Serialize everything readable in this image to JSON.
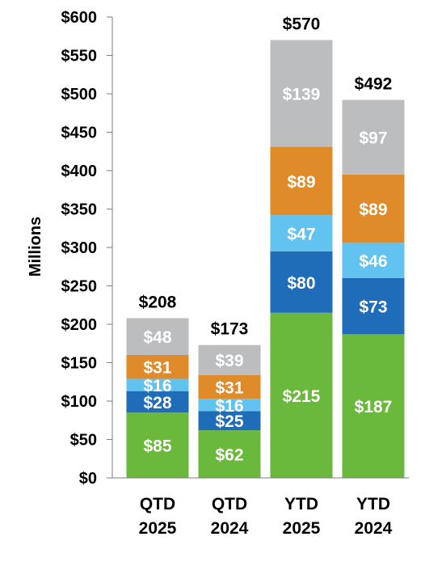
{
  "chart_data": {
    "type": "bar",
    "stacked": true,
    "title": "",
    "xlabel": "",
    "ylabel": "Millions",
    "ylim": [
      0,
      600
    ],
    "ytick_step": 50,
    "ytick_format": "$",
    "grid": false,
    "legend": "none",
    "categories": [
      [
        "QTD",
        "2025"
      ],
      [
        "QTD",
        "2024"
      ],
      [
        "YTD",
        "2025"
      ],
      [
        "YTD",
        "2024"
      ]
    ],
    "series": [
      {
        "color": "#6ab83c",
        "values": [
          85,
          62,
          215,
          187
        ]
      },
      {
        "color": "#1f6cb8",
        "values": [
          28,
          25,
          80,
          73
        ]
      },
      {
        "color": "#63c3f0",
        "values": [
          16,
          16,
          47,
          46
        ]
      },
      {
        "color": "#e08b2a",
        "values": [
          31,
          31,
          89,
          89
        ]
      },
      {
        "color": "#bcbdbf",
        "values": [
          48,
          39,
          139,
          97
        ]
      }
    ],
    "totals": [
      "$208",
      "$173",
      "$570",
      "$492"
    ],
    "value_labels": [
      [
        "$85",
        "$62",
        "$215",
        "$187"
      ],
      [
        "$28",
        "$25",
        "$80",
        "$73"
      ],
      [
        "$16",
        "$16",
        "$47",
        "$46"
      ],
      [
        "$31",
        "$31",
        "$89",
        "$89"
      ],
      [
        "$48",
        "$39",
        "$139",
        "$97"
      ]
    ],
    "yticks": [
      "$0",
      "$50",
      "$100",
      "$150",
      "$200",
      "$250",
      "$300",
      "$350",
      "$400",
      "$450",
      "$500",
      "$550",
      "$600"
    ]
  }
}
